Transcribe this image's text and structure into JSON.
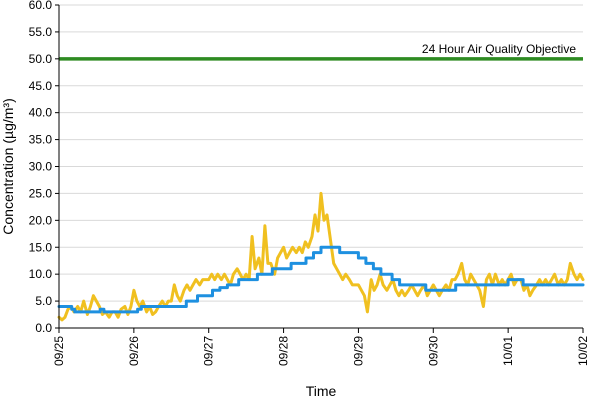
{
  "chart_data": {
    "type": "line",
    "title": "",
    "xlabel": "Time",
    "ylabel": "Concentration (µg/m³)",
    "ylim": [
      0,
      60
    ],
    "xlim": [
      0,
      7
    ],
    "y_ticks": [
      {
        "value": 0,
        "label": "0.0"
      },
      {
        "value": 5,
        "label": "5.0"
      },
      {
        "value": 10,
        "label": "10.0"
      },
      {
        "value": 15,
        "label": "15.0"
      },
      {
        "value": 20,
        "label": "20.0"
      },
      {
        "value": 25,
        "label": "25.0"
      },
      {
        "value": 30,
        "label": "30.0"
      },
      {
        "value": 35,
        "label": "35.0"
      },
      {
        "value": 40,
        "label": "40.0"
      },
      {
        "value": 45,
        "label": "45.0"
      },
      {
        "value": 50,
        "label": "50.0"
      },
      {
        "value": 55,
        "label": "55.0"
      },
      {
        "value": 60,
        "label": "60.0"
      }
    ],
    "x_ticks": [
      {
        "value": 0,
        "label": "09/25"
      },
      {
        "value": 1,
        "label": "09/26"
      },
      {
        "value": 2,
        "label": "09/27"
      },
      {
        "value": 3,
        "label": "09/28"
      },
      {
        "value": 4,
        "label": "09/29"
      },
      {
        "value": 5,
        "label": "09/30"
      },
      {
        "value": 6,
        "label": "10/01"
      },
      {
        "value": 7,
        "label": "10/02"
      }
    ],
    "grid": "horizontal",
    "legend": "none",
    "series": [
      {
        "color": "#f0c020",
        "points": [
          [
            0,
            2
          ],
          [
            0.04,
            1.5
          ],
          [
            0.08,
            2
          ],
          [
            0.12,
            3.5
          ],
          [
            0.16,
            4
          ],
          [
            0.2,
            3
          ],
          [
            0.25,
            4
          ],
          [
            0.29,
            3
          ],
          [
            0.33,
            5
          ],
          [
            0.38,
            2.5
          ],
          [
            0.42,
            4
          ],
          [
            0.46,
            6
          ],
          [
            0.5,
            5
          ],
          [
            0.54,
            4
          ],
          [
            0.58,
            2.5
          ],
          [
            0.62,
            3
          ],
          [
            0.67,
            2
          ],
          [
            0.71,
            3
          ],
          [
            0.75,
            3
          ],
          [
            0.79,
            2
          ],
          [
            0.83,
            3.5
          ],
          [
            0.88,
            4
          ],
          [
            0.92,
            2.5
          ],
          [
            0.96,
            4
          ],
          [
            1,
            7
          ],
          [
            1.04,
            5
          ],
          [
            1.08,
            4
          ],
          [
            1.12,
            5
          ],
          [
            1.17,
            3
          ],
          [
            1.21,
            4
          ],
          [
            1.25,
            2.5
          ],
          [
            1.29,
            3
          ],
          [
            1.33,
            4
          ],
          [
            1.38,
            5
          ],
          [
            1.42,
            4
          ],
          [
            1.46,
            5
          ],
          [
            1.5,
            5
          ],
          [
            1.54,
            8
          ],
          [
            1.58,
            6
          ],
          [
            1.62,
            5
          ],
          [
            1.67,
            7
          ],
          [
            1.71,
            8
          ],
          [
            1.75,
            7
          ],
          [
            1.79,
            8
          ],
          [
            1.83,
            9
          ],
          [
            1.88,
            8
          ],
          [
            1.92,
            9
          ],
          [
            1.96,
            9
          ],
          [
            2,
            9
          ],
          [
            2.04,
            10
          ],
          [
            2.08,
            9
          ],
          [
            2.12,
            10
          ],
          [
            2.17,
            9
          ],
          [
            2.21,
            10
          ],
          [
            2.25,
            9
          ],
          [
            2.29,
            8
          ],
          [
            2.33,
            10
          ],
          [
            2.38,
            11
          ],
          [
            2.42,
            10
          ],
          [
            2.46,
            9
          ],
          [
            2.5,
            10
          ],
          [
            2.54,
            9
          ],
          [
            2.58,
            17
          ],
          [
            2.62,
            11
          ],
          [
            2.67,
            13
          ],
          [
            2.71,
            10
          ],
          [
            2.75,
            19
          ],
          [
            2.79,
            12
          ],
          [
            2.83,
            12
          ],
          [
            2.88,
            10
          ],
          [
            2.92,
            13
          ],
          [
            2.96,
            14
          ],
          [
            3,
            15
          ],
          [
            3.04,
            13
          ],
          [
            3.08,
            14
          ],
          [
            3.12,
            15
          ],
          [
            3.17,
            14
          ],
          [
            3.21,
            15
          ],
          [
            3.25,
            14
          ],
          [
            3.29,
            16
          ],
          [
            3.33,
            15
          ],
          [
            3.38,
            17
          ],
          [
            3.42,
            21
          ],
          [
            3.46,
            18
          ],
          [
            3.5,
            25
          ],
          [
            3.54,
            20
          ],
          [
            3.58,
            21
          ],
          [
            3.62,
            17
          ],
          [
            3.67,
            12
          ],
          [
            3.71,
            11
          ],
          [
            3.75,
            10
          ],
          [
            3.79,
            9
          ],
          [
            3.83,
            10
          ],
          [
            3.88,
            9
          ],
          [
            3.92,
            8
          ],
          [
            3.96,
            8
          ],
          [
            4,
            8
          ],
          [
            4.04,
            7
          ],
          [
            4.08,
            6
          ],
          [
            4.12,
            3
          ],
          [
            4.17,
            9
          ],
          [
            4.21,
            7
          ],
          [
            4.25,
            8
          ],
          [
            4.29,
            10
          ],
          [
            4.33,
            8
          ],
          [
            4.38,
            7
          ],
          [
            4.42,
            8
          ],
          [
            4.46,
            9
          ],
          [
            4.5,
            7
          ],
          [
            4.54,
            6
          ],
          [
            4.58,
            7
          ],
          [
            4.62,
            6
          ],
          [
            4.67,
            7
          ],
          [
            4.71,
            8
          ],
          [
            4.75,
            7
          ],
          [
            4.79,
            6
          ],
          [
            4.83,
            7
          ],
          [
            4.88,
            8
          ],
          [
            4.92,
            6
          ],
          [
            4.96,
            7
          ],
          [
            5,
            8
          ],
          [
            5.04,
            7
          ],
          [
            5.08,
            6
          ],
          [
            5.12,
            7
          ],
          [
            5.17,
            8
          ],
          [
            5.21,
            7
          ],
          [
            5.25,
            9
          ],
          [
            5.29,
            9
          ],
          [
            5.33,
            10
          ],
          [
            5.38,
            12
          ],
          [
            5.42,
            9
          ],
          [
            5.46,
            8
          ],
          [
            5.5,
            10
          ],
          [
            5.54,
            9
          ],
          [
            5.58,
            8
          ],
          [
            5.62,
            7
          ],
          [
            5.67,
            4
          ],
          [
            5.71,
            9
          ],
          [
            5.75,
            10
          ],
          [
            5.79,
            8
          ],
          [
            5.83,
            10
          ],
          [
            5.88,
            8
          ],
          [
            5.92,
            9
          ],
          [
            5.96,
            8
          ],
          [
            6,
            9
          ],
          [
            6.04,
            10
          ],
          [
            6.08,
            8
          ],
          [
            6.12,
            9
          ],
          [
            6.17,
            9
          ],
          [
            6.21,
            7
          ],
          [
            6.25,
            8
          ],
          [
            6.29,
            6
          ],
          [
            6.33,
            7
          ],
          [
            6.38,
            8
          ],
          [
            6.42,
            9
          ],
          [
            6.46,
            8
          ],
          [
            6.5,
            9
          ],
          [
            6.54,
            8
          ],
          [
            6.58,
            9
          ],
          [
            6.62,
            10
          ],
          [
            6.67,
            8
          ],
          [
            6.71,
            9
          ],
          [
            6.75,
            8
          ],
          [
            6.79,
            9
          ],
          [
            6.83,
            12
          ],
          [
            6.88,
            10
          ],
          [
            6.92,
            9
          ],
          [
            6.96,
            10
          ],
          [
            7,
            9
          ]
        ]
      },
      {
        "color": "#1e90e0",
        "points": [
          [
            0,
            4
          ],
          [
            0.17,
            4
          ],
          [
            0.17,
            3.5
          ],
          [
            0.21,
            3.5
          ],
          [
            0.21,
            3
          ],
          [
            0.55,
            3
          ],
          [
            0.55,
            3.5
          ],
          [
            0.6,
            3.5
          ],
          [
            0.6,
            3
          ],
          [
            1.05,
            3
          ],
          [
            1.05,
            3.5
          ],
          [
            1.1,
            3.5
          ],
          [
            1.1,
            4
          ],
          [
            1.7,
            4
          ],
          [
            1.7,
            5
          ],
          [
            1.85,
            5
          ],
          [
            1.85,
            6
          ],
          [
            2.05,
            6
          ],
          [
            2.05,
            7
          ],
          [
            2.15,
            7
          ],
          [
            2.15,
            7.5
          ],
          [
            2.25,
            7.5
          ],
          [
            2.25,
            8
          ],
          [
            2.4,
            8
          ],
          [
            2.4,
            9
          ],
          [
            2.65,
            9
          ],
          [
            2.65,
            10
          ],
          [
            2.85,
            10
          ],
          [
            2.85,
            11
          ],
          [
            3.1,
            11
          ],
          [
            3.1,
            12
          ],
          [
            3.3,
            12
          ],
          [
            3.3,
            13
          ],
          [
            3.4,
            13
          ],
          [
            3.4,
            14
          ],
          [
            3.5,
            14
          ],
          [
            3.5,
            15
          ],
          [
            3.75,
            15
          ],
          [
            3.75,
            14
          ],
          [
            4,
            14
          ],
          [
            4,
            13
          ],
          [
            4.1,
            13
          ],
          [
            4.1,
            12
          ],
          [
            4.2,
            12
          ],
          [
            4.2,
            11
          ],
          [
            4.3,
            11
          ],
          [
            4.3,
            10
          ],
          [
            4.45,
            10
          ],
          [
            4.45,
            9
          ],
          [
            4.55,
            9
          ],
          [
            4.55,
            8
          ],
          [
            4.9,
            8
          ],
          [
            4.9,
            7
          ],
          [
            5.3,
            7
          ],
          [
            5.3,
            8
          ],
          [
            6,
            8
          ],
          [
            6,
            9
          ],
          [
            6.2,
            9
          ],
          [
            6.2,
            8
          ],
          [
            7,
            8
          ]
        ]
      }
    ],
    "reference_line": {
      "value": 50,
      "color": "#2e8b22",
      "label": "24 Hour Air Quality Objective"
    }
  }
}
